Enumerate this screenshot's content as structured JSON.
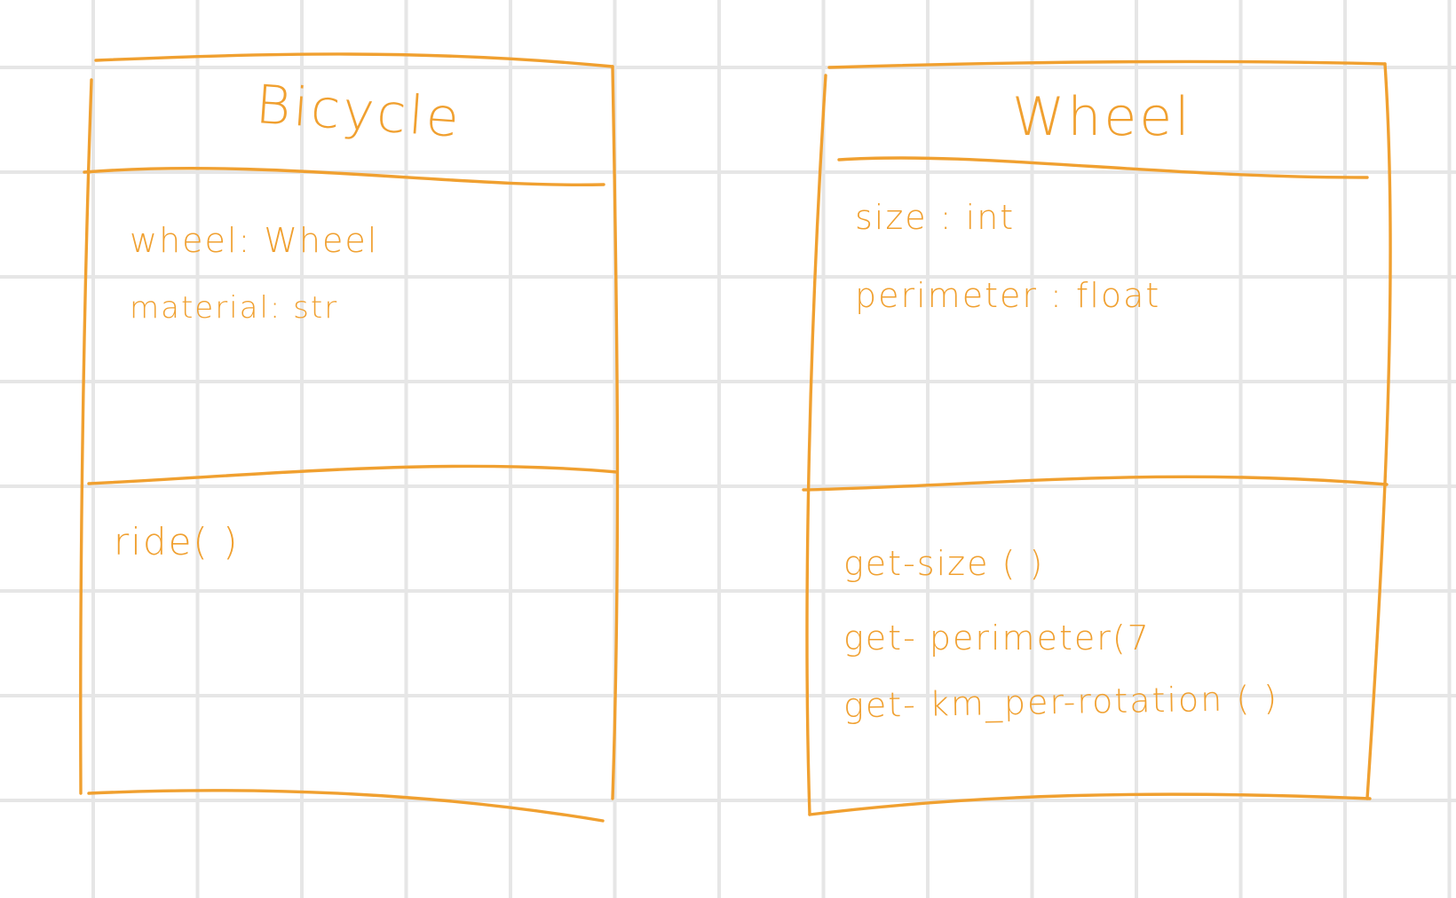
{
  "diagram": {
    "classes": [
      {
        "id": "bicycle",
        "name": "Bicycle",
        "attributes": [
          "wheel: Wheel",
          "material: str"
        ],
        "methods": [
          "ride( )"
        ]
      },
      {
        "id": "wheel",
        "name": "Wheel",
        "attributes": [
          "size : int",
          "perimeter : float"
        ],
        "methods": [
          "get-size ( )",
          "get- perimeter(7",
          "get- km_per-rotation ( )"
        ]
      }
    ],
    "colors": {
      "ink": "#f0a030",
      "grid": "#e6e6e6",
      "background": "#ffffff"
    }
  }
}
